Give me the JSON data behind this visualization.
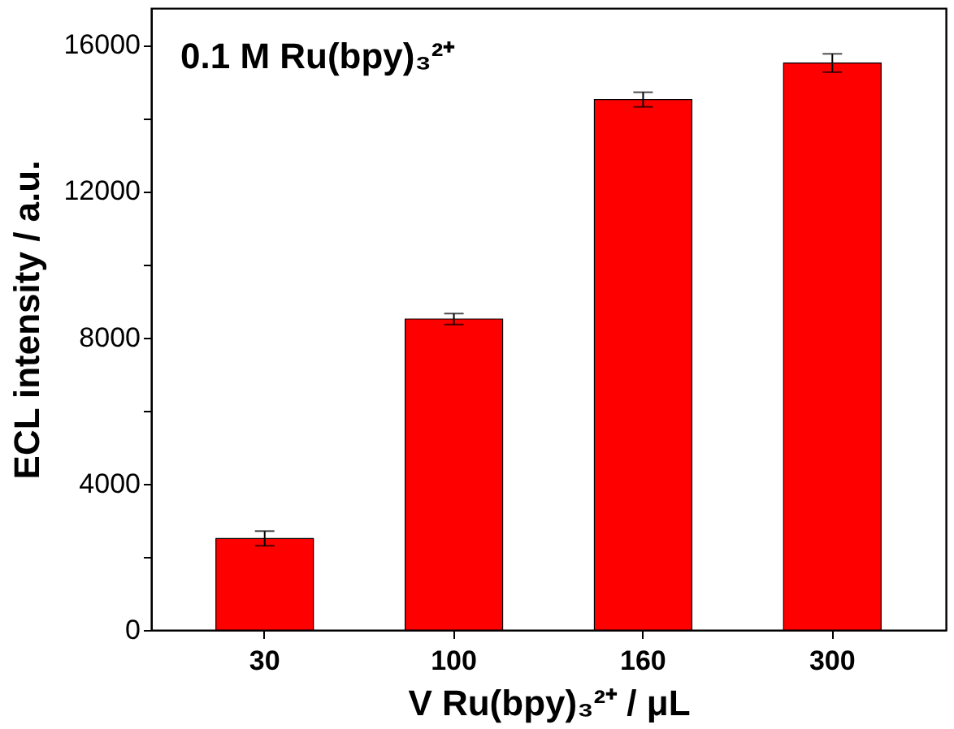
{
  "chart_data": {
    "type": "bar",
    "ylabel": "ECL intensity / a.u.",
    "xlabel": "V Ru(bpy)₃²⁺ / μL",
    "annotations": [
      "0.1 M Ru(bpy)₃²⁺"
    ],
    "categories": [
      "30",
      "100",
      "160",
      "300"
    ],
    "values": [
      2500,
      8500,
      14500,
      15500
    ],
    "errors": [
      200,
      150,
      200,
      250
    ],
    "color": "#ff0000",
    "ylim": [
      0,
      17000
    ],
    "yticks": [
      0,
      {
        "value": 2000,
        "label": null
      },
      4000,
      {
        "value": 6000,
        "label": null
      },
      8000,
      {
        "value": 10000,
        "label": null
      },
      12000,
      {
        "value": 14000,
        "label": null
      },
      16000
    ],
    "grid": false
  }
}
